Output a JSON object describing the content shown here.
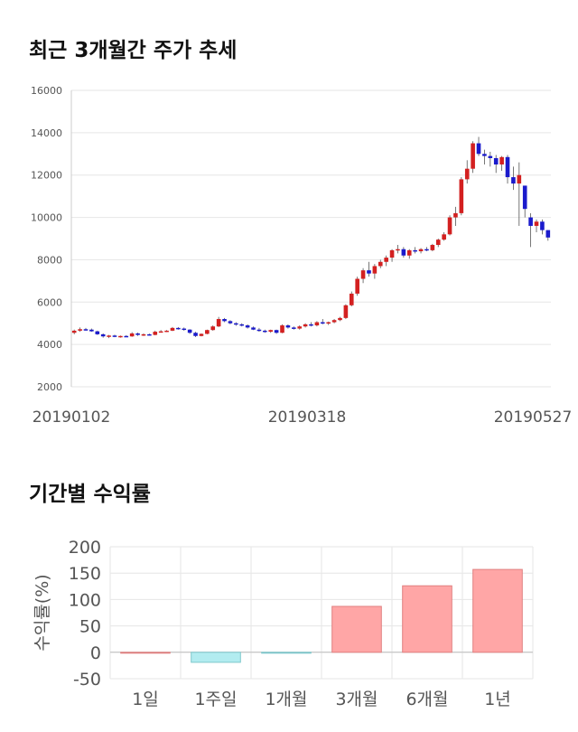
{
  "title1": "최근 3개월간 주가 추세",
  "title2": "기간별 수익률",
  "colors": {
    "up": "#d32020",
    "down": "#1a1acc",
    "pos_bar": "#ffa6a6",
    "neg_bar": "#b2ecf0"
  },
  "chart_data": [
    {
      "type": "candlestick",
      "ylim": [
        2000,
        16000
      ],
      "yticks": [
        2000,
        4000,
        6000,
        8000,
        10000,
        12000,
        14000,
        16000
      ],
      "date_labels": [
        "20190102",
        "20190318",
        "20190527"
      ],
      "grid": true,
      "ohlc": [
        [
          4550,
          4700,
          4480,
          4650
        ],
        [
          4650,
          4800,
          4600,
          4720
        ],
        [
          4720,
          4780,
          4650,
          4700
        ],
        [
          4700,
          4750,
          4600,
          4620
        ],
        [
          4620,
          4650,
          4450,
          4480
        ],
        [
          4480,
          4520,
          4320,
          4380
        ],
        [
          4380,
          4450,
          4300,
          4420
        ],
        [
          4420,
          4460,
          4340,
          4370
        ],
        [
          4370,
          4420,
          4320,
          4400
        ],
        [
          4400,
          4440,
          4350,
          4380
        ],
        [
          4380,
          4580,
          4360,
          4520
        ],
        [
          4520,
          4560,
          4400,
          4450
        ],
        [
          4450,
          4520,
          4400,
          4480
        ],
        [
          4480,
          4510,
          4420,
          4450
        ],
        [
          4450,
          4650,
          4430,
          4600
        ],
        [
          4600,
          4680,
          4560,
          4620
        ],
        [
          4620,
          4680,
          4580,
          4650
        ],
        [
          4650,
          4820,
          4630,
          4780
        ],
        [
          4780,
          4820,
          4700,
          4750
        ],
        [
          4750,
          4800,
          4650,
          4700
        ],
        [
          4700,
          4720,
          4500,
          4550
        ],
        [
          4550,
          4600,
          4350,
          4400
        ],
        [
          4400,
          4520,
          4380,
          4500
        ],
        [
          4500,
          4700,
          4480,
          4680
        ],
        [
          4680,
          4900,
          4650,
          4850
        ],
        [
          4850,
          5300,
          4820,
          5200
        ],
        [
          5200,
          5250,
          5050,
          5100
        ],
        [
          5100,
          5150,
          4950,
          5000
        ],
        [
          5000,
          5050,
          4880,
          4950
        ],
        [
          4950,
          5000,
          4850,
          4900
        ],
        [
          4900,
          4950,
          4750,
          4800
        ],
        [
          4800,
          4850,
          4680,
          4700
        ],
        [
          4700,
          4780,
          4600,
          4650
        ],
        [
          4650,
          4700,
          4550,
          4600
        ],
        [
          4600,
          4700,
          4550,
          4680
        ],
        [
          4680,
          4700,
          4500,
          4550
        ],
        [
          4550,
          4950,
          4530,
          4900
        ],
        [
          4900,
          4950,
          4750,
          4800
        ],
        [
          4800,
          4850,
          4700,
          4750
        ],
        [
          4750,
          4900,
          4700,
          4850
        ],
        [
          4850,
          5000,
          4800,
          4950
        ],
        [
          4950,
          5050,
          4850,
          4900
        ],
        [
          4900,
          5100,
          4850,
          5050
        ],
        [
          5050,
          5200,
          4950,
          5000
        ],
        [
          5000,
          5080,
          4920,
          5050
        ],
        [
          5050,
          5200,
          5000,
          5150
        ],
        [
          5150,
          5300,
          5100,
          5250
        ],
        [
          5250,
          5900,
          5200,
          5850
        ],
        [
          5850,
          6500,
          5800,
          6400
        ],
        [
          6400,
          7200,
          6300,
          7100
        ],
        [
          7100,
          7600,
          6900,
          7500
        ],
        [
          7500,
          7900,
          7200,
          7350
        ],
        [
          7350,
          7800,
          7100,
          7700
        ],
        [
          7700,
          8000,
          7600,
          7900
        ],
        [
          7900,
          8200,
          7700,
          8100
        ],
        [
          8100,
          8500,
          7900,
          8450
        ],
        [
          8450,
          8700,
          8300,
          8500
        ],
        [
          8500,
          8600,
          8100,
          8200
        ],
        [
          8200,
          8500,
          8050,
          8450
        ],
        [
          8450,
          8600,
          8300,
          8400
        ],
        [
          8400,
          8550,
          8300,
          8500
        ],
        [
          8500,
          8600,
          8400,
          8450
        ],
        [
          8450,
          8750,
          8400,
          8700
        ],
        [
          8700,
          9000,
          8600,
          8950
        ],
        [
          8950,
          9300,
          8900,
          9200
        ],
        [
          9200,
          10100,
          9150,
          10000
        ],
        [
          10000,
          10500,
          9600,
          10200
        ],
        [
          10200,
          11900,
          10100,
          11800
        ],
        [
          11800,
          12700,
          11600,
          12300
        ],
        [
          12300,
          13600,
          12100,
          13500
        ],
        [
          13500,
          13800,
          12900,
          13000
        ],
        [
          13000,
          13200,
          12500,
          12900
        ],
        [
          12900,
          13100,
          12400,
          12800
        ],
        [
          12800,
          12950,
          12100,
          12500
        ],
        [
          12500,
          12900,
          12200,
          12850
        ],
        [
          12850,
          12950,
          11600,
          11900
        ],
        [
          11900,
          12400,
          11300,
          11600
        ],
        [
          11600,
          12600,
          9600,
          12000
        ],
        [
          11500,
          11500,
          10000,
          10400
        ],
        [
          10000,
          10200,
          8600,
          9600
        ],
        [
          9600,
          9900,
          9300,
          9800
        ],
        [
          9800,
          9900,
          9200,
          9400
        ],
        [
          9400,
          9400,
          8900,
          9050
        ]
      ]
    },
    {
      "type": "bar",
      "categories": [
        "1일",
        "1주일",
        "1개월",
        "3개월",
        "6개월",
        "1년"
      ],
      "values": [
        0,
        -19,
        -1,
        87,
        126,
        157
      ],
      "ylabel": "수익률(%)",
      "ylim": [
        -50,
        200
      ],
      "yticks": [
        -50,
        0,
        50,
        100,
        150,
        200
      ],
      "grid": true
    }
  ]
}
